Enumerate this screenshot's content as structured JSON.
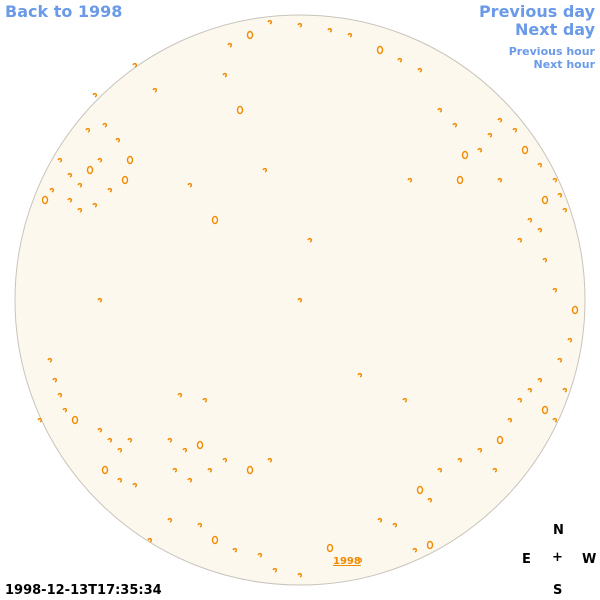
{
  "nav": {
    "back_label": "Back to 1998",
    "prev_day_label": "Previous day",
    "next_day_label": "Next day",
    "prev_hour_label": "Previous hour",
    "next_hour_label": "Next hour"
  },
  "timestamp": "1998-12-13T17:35:34",
  "year_link": "1998",
  "compass": {
    "north": "N",
    "east": "E",
    "center": "+",
    "west": "W",
    "south": "S"
  },
  "colors": {
    "disk_fill": "#fdf8ee",
    "disk_edge": "#c8c4bc",
    "features": "#f08a00",
    "nav_text": "#6a9ae8"
  }
}
